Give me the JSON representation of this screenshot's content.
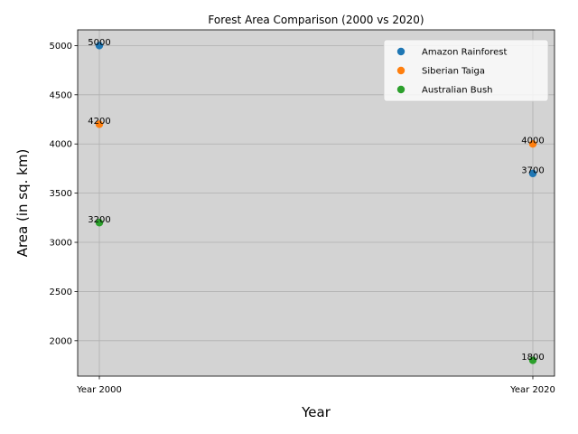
{
  "chart_data": {
    "type": "scatter",
    "title": "Forest Area Comparison (2000 vs 2020)",
    "xlabel": "Year",
    "ylabel": "Area (in sq. km)",
    "categories": [
      "Year 2000",
      "Year 2020"
    ],
    "ylim": [
      1640,
      5160
    ],
    "yticks": [
      2000,
      2500,
      3000,
      3500,
      4000,
      4500,
      5000
    ],
    "grid": true,
    "legend": "top-right",
    "background_color": "#d3d3d3",
    "series": [
      {
        "name": "Amazon Rainforest",
        "color": "#1f77b4",
        "values": [
          5000,
          3700
        ]
      },
      {
        "name": "Siberian Taiga",
        "color": "#ff7f0e",
        "values": [
          4200,
          4000
        ]
      },
      {
        "name": "Australian Bush",
        "color": "#2ca02c",
        "values": [
          3200,
          1800
        ]
      }
    ]
  }
}
